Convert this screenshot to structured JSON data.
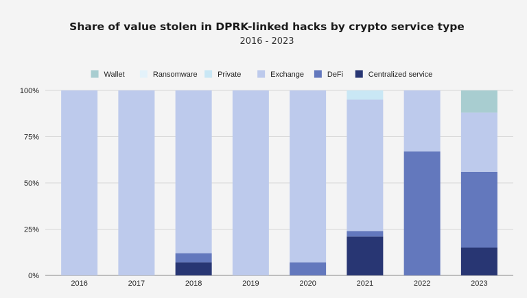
{
  "chart_data": {
    "type": "bar",
    "stacked": true,
    "title": "Share of value stolen in DPRK-linked hacks by crypto service type",
    "subtitle": "2016 - 2023",
    "categories": [
      "2016",
      "2017",
      "2018",
      "2019",
      "2020",
      "2021",
      "2022",
      "2023"
    ],
    "ylim": [
      0,
      100
    ],
    "yticks": [
      "0%",
      "25%",
      "50%",
      "75%",
      "100%"
    ],
    "grid": true,
    "legend_position": "top",
    "series": [
      {
        "name": "Centralized service",
        "color": "#283673",
        "values": [
          0,
          0,
          7,
          0,
          0,
          21,
          0,
          15
        ]
      },
      {
        "name": "DeFi",
        "color": "#6378bd",
        "values": [
          0,
          0,
          5,
          0,
          7,
          3,
          67,
          41
        ]
      },
      {
        "name": "Exchange",
        "color": "#bdcaec",
        "values": [
          100,
          100,
          88,
          100,
          93,
          71,
          33,
          32
        ]
      },
      {
        "name": "Private",
        "color": "#c9e7f5",
        "values": [
          0,
          0,
          0,
          0,
          0,
          5,
          0,
          0
        ]
      },
      {
        "name": "Ransomware",
        "color": "#e3f2fa",
        "values": [
          0,
          0,
          0,
          0,
          0,
          0,
          0,
          0
        ]
      },
      {
        "name": "Wallet",
        "color": "#a8cdd0",
        "values": [
          0,
          0,
          0,
          0,
          0,
          0,
          0,
          12
        ]
      }
    ]
  }
}
